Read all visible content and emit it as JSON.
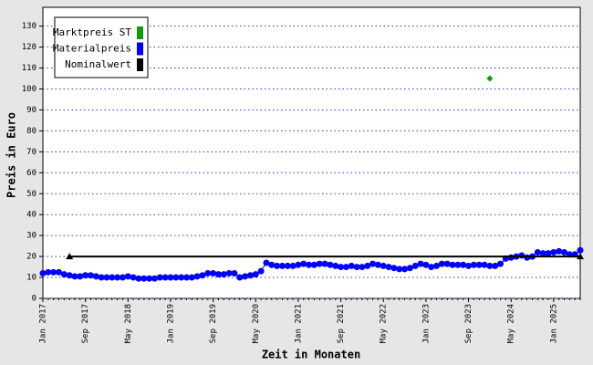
{
  "chart_data": {
    "type": "scatter-line",
    "x_label": "Zeit in Monaten",
    "y_label": "Preis in Euro",
    "categories": [
      "Jan 2017",
      null,
      null,
      null,
      null,
      null,
      null,
      null,
      "Sep 2017",
      null,
      null,
      null,
      null,
      null,
      null,
      null,
      "May 2018",
      null,
      null,
      null,
      null,
      null,
      null,
      null,
      "Jan 2019",
      null,
      null,
      null,
      null,
      null,
      null,
      null,
      "Sep 2019",
      null,
      null,
      null,
      null,
      null,
      null,
      null,
      "May 2020",
      null,
      null,
      null,
      null,
      null,
      null,
      null,
      "Jan 2021",
      null,
      null,
      null,
      null,
      null,
      null,
      null,
      "Sep 2021",
      null,
      null,
      null,
      null,
      null,
      null,
      null,
      "May 2022",
      null,
      null,
      null,
      null,
      null,
      null,
      null,
      "Jan 2023",
      null,
      null,
      null,
      null,
      null,
      null,
      null,
      "Sep 2023",
      null,
      null,
      null,
      null,
      null,
      null,
      null,
      "May 2024",
      null,
      null,
      null,
      null,
      null,
      null,
      null,
      "Jan 2025",
      null,
      null,
      null,
      null,
      null
    ],
    "ylim": [
      0,
      139
    ],
    "yticks": [
      0,
      10,
      20,
      30,
      40,
      50,
      60,
      70,
      80,
      90,
      100,
      110,
      120,
      130
    ],
    "grid": true,
    "series": [
      {
        "name": "Marktpreis ST",
        "color": "#109a10",
        "style": "points",
        "values": [
          null,
          null,
          null,
          null,
          null,
          null,
          null,
          null,
          null,
          null,
          null,
          null,
          null,
          null,
          null,
          null,
          null,
          null,
          null,
          null,
          null,
          null,
          null,
          null,
          null,
          null,
          null,
          null,
          null,
          null,
          null,
          null,
          null,
          null,
          null,
          null,
          null,
          null,
          null,
          null,
          null,
          null,
          null,
          null,
          null,
          null,
          null,
          null,
          null,
          null,
          null,
          null,
          null,
          null,
          null,
          null,
          null,
          null,
          null,
          null,
          null,
          null,
          null,
          null,
          null,
          null,
          null,
          null,
          null,
          null,
          null,
          null,
          null,
          null,
          null,
          null,
          null,
          null,
          null,
          null,
          null,
          null,
          null,
          null,
          105,
          null,
          null,
          null,
          null,
          null,
          null,
          null,
          null,
          null,
          null,
          null,
          null,
          null,
          null,
          null,
          null,
          null
        ]
      },
      {
        "name": "Materialpreis",
        "color": "#0000ff",
        "style": "line-points",
        "values": [
          12,
          12.5,
          12.5,
          12.5,
          11.5,
          11,
          10.5,
          10.5,
          11,
          11,
          10.5,
          10,
          10,
          10,
          10,
          10,
          10.5,
          10,
          9.5,
          9.5,
          9.5,
          9.5,
          10,
          10,
          10,
          10,
          10,
          10,
          10,
          10.5,
          11,
          12,
          12,
          11.5,
          11.5,
          12,
          12,
          10,
          10.5,
          11,
          11.5,
          13,
          17,
          16,
          15.5,
          15.5,
          15.5,
          15.5,
          16,
          16.5,
          16,
          16,
          16.5,
          16.5,
          16,
          15.5,
          15,
          15,
          15.5,
          15,
          15,
          15.5,
          16.5,
          16,
          15.5,
          15,
          14.5,
          14,
          14,
          14.5,
          15.5,
          16.5,
          16,
          15,
          15.5,
          16.5,
          16.5,
          16,
          16,
          16,
          15.5,
          16,
          16,
          16,
          15.5,
          15.5,
          16.5,
          19,
          19.5,
          20,
          20.5,
          19.5,
          20,
          22,
          21.5,
          21.5,
          22,
          22.5,
          22,
          21,
          21,
          23
        ]
      },
      {
        "name": "Nominalwert",
        "color": "#000000",
        "style": "line-ends",
        "values": [
          null,
          null,
          null,
          null,
          null,
          20,
          20,
          20,
          20,
          20,
          20,
          20,
          20,
          20,
          20,
          20,
          20,
          20,
          20,
          20,
          20,
          20,
          20,
          20,
          20,
          20,
          20,
          20,
          20,
          20,
          20,
          20,
          20,
          20,
          20,
          20,
          20,
          20,
          20,
          20,
          20,
          20,
          20,
          20,
          20,
          20,
          20,
          20,
          20,
          20,
          20,
          20,
          20,
          20,
          20,
          20,
          20,
          20,
          20,
          20,
          20,
          20,
          20,
          20,
          20,
          20,
          20,
          20,
          20,
          20,
          20,
          20,
          20,
          20,
          20,
          20,
          20,
          20,
          20,
          20,
          20,
          20,
          20,
          20,
          20,
          20,
          20,
          20,
          20,
          20,
          20,
          20,
          20,
          20,
          20,
          20,
          20,
          20,
          20,
          20,
          20,
          20
        ]
      }
    ]
  }
}
